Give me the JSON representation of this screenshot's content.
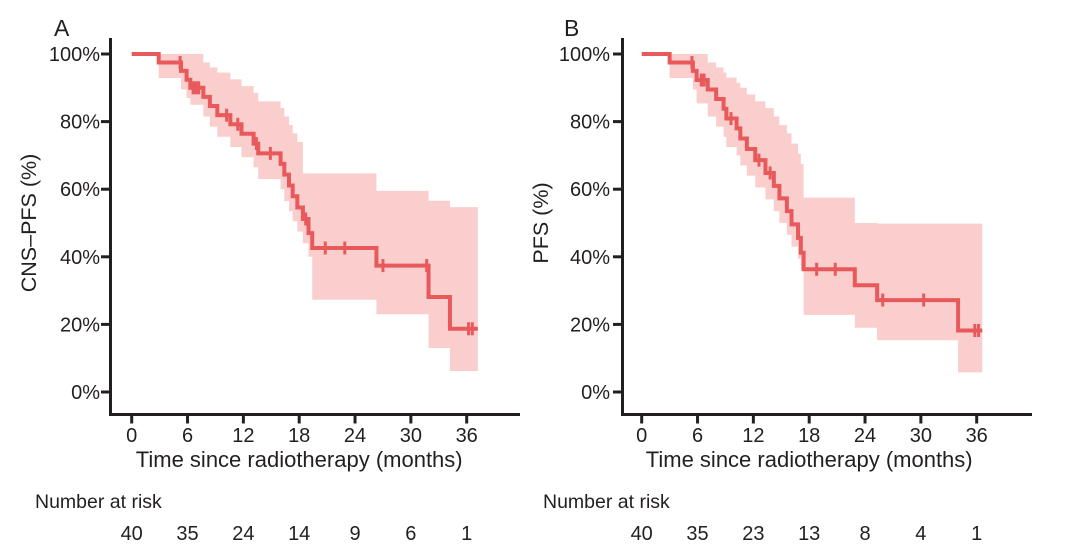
{
  "figure": {
    "background": "#ffffff",
    "text_color": "#231f20",
    "axis_color": "#231f20",
    "curve_color": "#e8595c",
    "ci_fill_color": "#f9cecd"
  },
  "chart_data": [
    {
      "panel_label": "A",
      "type": "line",
      "subtype": "kaplan_meier_step_with_ci",
      "title": "",
      "ylabel": "CNS–PFS (%)",
      "xlabel": "Time since radiotherapy (months)",
      "x_ticks": [
        0,
        6,
        12,
        18,
        24,
        30,
        36
      ],
      "y_ticks": [
        0,
        20,
        40,
        60,
        80,
        100
      ],
      "y_tick_labels": [
        "0%",
        "20%",
        "40%",
        "60%",
        "80%",
        "100%"
      ],
      "xlim": [
        0,
        40
      ],
      "ylim_percent": [
        0,
        100
      ],
      "grid": false,
      "legend": "none",
      "curve_color": "#e8595c",
      "ci_fill_color": "#f9cecd",
      "axis_color": "#231f20",
      "survival_steps": [
        {
          "t": 0,
          "s": 100
        },
        {
          "t": 2.9,
          "s": 97.5
        },
        {
          "t": 5.3,
          "s": 95.0
        },
        {
          "t": 5.9,
          "s": 92.4
        },
        {
          "t": 6.3,
          "s": 90.0
        },
        {
          "t": 7.7,
          "s": 87.3
        },
        {
          "t": 8.4,
          "s": 84.6
        },
        {
          "t": 9.2,
          "s": 81.9
        },
        {
          "t": 10.6,
          "s": 79.2
        },
        {
          "t": 11.8,
          "s": 76.4
        },
        {
          "t": 13.1,
          "s": 73.5
        },
        {
          "t": 13.6,
          "s": 70.6
        },
        {
          "t": 16.0,
          "s": 67.5
        },
        {
          "t": 16.4,
          "s": 64.3
        },
        {
          "t": 16.9,
          "s": 61.1
        },
        {
          "t": 17.3,
          "s": 57.9
        },
        {
          "t": 17.8,
          "s": 54.6
        },
        {
          "t": 18.4,
          "s": 51.2
        },
        {
          "t": 19.0,
          "s": 47.0
        },
        {
          "t": 19.4,
          "s": 42.6
        },
        {
          "t": 26.3,
          "s": 37.4
        },
        {
          "t": 31.9,
          "s": 28.1
        },
        {
          "t": 34.2,
          "s": 18.7
        }
      ],
      "curve_end_time": 37.2,
      "censor_marks": [
        {
          "t": 5.2,
          "s": 97.5
        },
        {
          "t": 6.6,
          "s": 90.0
        },
        {
          "t": 6.9,
          "s": 90.0
        },
        {
          "t": 7.2,
          "s": 90.0
        },
        {
          "t": 10.2,
          "s": 81.9
        },
        {
          "t": 11.4,
          "s": 79.2
        },
        {
          "t": 13.4,
          "s": 73.5
        },
        {
          "t": 14.9,
          "s": 70.6
        },
        {
          "t": 18.7,
          "s": 51.2
        },
        {
          "t": 20.8,
          "s": 42.6
        },
        {
          "t": 22.9,
          "s": 42.6
        },
        {
          "t": 27.0,
          "s": 37.4
        },
        {
          "t": 31.7,
          "s": 37.4
        },
        {
          "t": 36.2,
          "s": 18.7
        },
        {
          "t": 36.6,
          "s": 18.7
        }
      ],
      "ci_band": [
        {
          "t0": 2.9,
          "t1": 5.3,
          "hi": 100,
          "lo": 92.9
        },
        {
          "t0": 5.3,
          "t1": 5.9,
          "hi": 100,
          "lo": 89.5
        },
        {
          "t0": 5.9,
          "t1": 6.3,
          "hi": 100,
          "lo": 87.0
        },
        {
          "t0": 6.3,
          "t1": 7.7,
          "hi": 100,
          "lo": 85.0
        },
        {
          "t0": 7.7,
          "t1": 8.4,
          "hi": 97.5,
          "lo": 81.5
        },
        {
          "t0": 8.4,
          "t1": 9.2,
          "hi": 96.0,
          "lo": 78.5
        },
        {
          "t0": 9.2,
          "t1": 10.6,
          "hi": 94.5,
          "lo": 75.5
        },
        {
          "t0": 10.6,
          "t1": 11.8,
          "hi": 92.5,
          "lo": 72.5
        },
        {
          "t0": 11.8,
          "t1": 13.1,
          "hi": 90.5,
          "lo": 69.5
        },
        {
          "t0": 13.1,
          "t1": 13.6,
          "hi": 88.5,
          "lo": 66.5
        },
        {
          "t0": 13.6,
          "t1": 16.0,
          "hi": 86.0,
          "lo": 63.0
        },
        {
          "t0": 16.0,
          "t1": 16.4,
          "hi": 84.0,
          "lo": 60.0
        },
        {
          "t0": 16.4,
          "t1": 16.9,
          "hi": 81.5,
          "lo": 56.5
        },
        {
          "t0": 16.9,
          "t1": 17.3,
          "hi": 79.0,
          "lo": 53.5
        },
        {
          "t0": 17.3,
          "t1": 17.8,
          "hi": 76.5,
          "lo": 50.5
        },
        {
          "t0": 17.8,
          "t1": 18.4,
          "hi": 74.0,
          "lo": 47.5
        },
        {
          "t0": 18.4,
          "t1": 19.0,
          "hi": 64.7,
          "lo": 44.0
        },
        {
          "t0": 19.0,
          "t1": 19.4,
          "hi": 64.7,
          "lo": 40.0
        },
        {
          "t0": 19.4,
          "t1": 26.3,
          "hi": 64.7,
          "lo": 27.3
        },
        {
          "t0": 26.3,
          "t1": 31.9,
          "hi": 59.5,
          "lo": 23.0
        },
        {
          "t0": 31.9,
          "t1": 34.2,
          "hi": 56.6,
          "lo": 13.0
        },
        {
          "t0": 34.2,
          "t1": 37.2,
          "hi": 54.7,
          "lo": 6.2
        }
      ],
      "risk_table": {
        "label": "Number at risk",
        "times": [
          0,
          6,
          12,
          18,
          24,
          30,
          36
        ],
        "counts": [
          40,
          35,
          24,
          14,
          9,
          6,
          1
        ]
      }
    },
    {
      "panel_label": "B",
      "type": "line",
      "subtype": "kaplan_meier_step_with_ci",
      "title": "",
      "ylabel": "PFS (%)",
      "xlabel": "Time since radiotherapy (months)",
      "x_ticks": [
        0,
        6,
        12,
        18,
        24,
        30,
        36
      ],
      "y_ticks": [
        0,
        20,
        40,
        60,
        80,
        100
      ],
      "y_tick_labels": [
        "0%",
        "20%",
        "40%",
        "60%",
        "80%",
        "100%"
      ],
      "xlim": [
        0,
        40
      ],
      "ylim_percent": [
        0,
        100
      ],
      "grid": false,
      "legend": "none",
      "curve_color": "#e8595c",
      "ci_fill_color": "#f9cecd",
      "axis_color": "#231f20",
      "survival_steps": [
        {
          "t": 0,
          "s": 100
        },
        {
          "t": 3.0,
          "s": 97.5
        },
        {
          "t": 5.5,
          "s": 95.0
        },
        {
          "t": 5.9,
          "s": 92.3
        },
        {
          "t": 7.1,
          "s": 89.5
        },
        {
          "t": 8.0,
          "s": 86.7
        },
        {
          "t": 8.8,
          "s": 83.8
        },
        {
          "t": 9.1,
          "s": 80.9
        },
        {
          "t": 10.2,
          "s": 78.0
        },
        {
          "t": 10.6,
          "s": 75.0
        },
        {
          "t": 11.3,
          "s": 71.9
        },
        {
          "t": 12.2,
          "s": 68.6
        },
        {
          "t": 13.3,
          "s": 64.8
        },
        {
          "t": 14.2,
          "s": 61.0
        },
        {
          "t": 14.8,
          "s": 57.3
        },
        {
          "t": 15.6,
          "s": 53.5
        },
        {
          "t": 16.1,
          "s": 49.6
        },
        {
          "t": 16.8,
          "s": 45.6
        },
        {
          "t": 17.1,
          "s": 41.2
        },
        {
          "t": 17.4,
          "s": 36.3
        },
        {
          "t": 22.9,
          "s": 31.6
        },
        {
          "t": 25.3,
          "s": 27.2
        },
        {
          "t": 34.0,
          "s": 18.2
        }
      ],
      "curve_end_time": 36.6,
      "censor_marks": [
        {
          "t": 5.4,
          "s": 97.5
        },
        {
          "t": 6.4,
          "s": 92.3
        },
        {
          "t": 6.7,
          "s": 92.3
        },
        {
          "t": 9.6,
          "s": 80.9
        },
        {
          "t": 12.6,
          "s": 68.6
        },
        {
          "t": 13.8,
          "s": 64.8
        },
        {
          "t": 18.8,
          "s": 36.3
        },
        {
          "t": 20.8,
          "s": 36.3
        },
        {
          "t": 25.9,
          "s": 27.2
        },
        {
          "t": 30.3,
          "s": 27.2
        },
        {
          "t": 35.8,
          "s": 18.2
        },
        {
          "t": 36.2,
          "s": 18.2
        }
      ],
      "ci_band": [
        {
          "t0": 3.0,
          "t1": 5.5,
          "hi": 100,
          "lo": 92.9
        },
        {
          "t0": 5.5,
          "t1": 5.9,
          "hi": 100,
          "lo": 89.5
        },
        {
          "t0": 5.9,
          "t1": 7.1,
          "hi": 100,
          "lo": 85.4
        },
        {
          "t0": 7.1,
          "t1": 8.0,
          "hi": 97.5,
          "lo": 81.5
        },
        {
          "t0": 8.0,
          "t1": 8.8,
          "hi": 96.0,
          "lo": 78.5
        },
        {
          "t0": 8.8,
          "t1": 9.1,
          "hi": 94.5,
          "lo": 75.5
        },
        {
          "t0": 9.1,
          "t1": 10.2,
          "hi": 93.0,
          "lo": 72.5
        },
        {
          "t0": 10.2,
          "t1": 10.6,
          "hi": 91.5,
          "lo": 70.0
        },
        {
          "t0": 10.6,
          "t1": 11.3,
          "hi": 90.0,
          "lo": 67.0
        },
        {
          "t0": 11.3,
          "t1": 12.2,
          "hi": 88.0,
          "lo": 64.0
        },
        {
          "t0": 12.2,
          "t1": 13.3,
          "hi": 86.0,
          "lo": 60.5
        },
        {
          "t0": 13.3,
          "t1": 14.2,
          "hi": 84.0,
          "lo": 57.0
        },
        {
          "t0": 14.2,
          "t1": 14.8,
          "hi": 81.5,
          "lo": 53.5
        },
        {
          "t0": 14.8,
          "t1": 15.6,
          "hi": 79.0,
          "lo": 50.0
        },
        {
          "t0": 15.6,
          "t1": 16.1,
          "hi": 76.5,
          "lo": 46.5
        },
        {
          "t0": 16.1,
          "t1": 16.8,
          "hi": 73.5,
          "lo": 43.0
        },
        {
          "t0": 16.8,
          "t1": 17.1,
          "hi": 70.5,
          "lo": 39.5
        },
        {
          "t0": 17.1,
          "t1": 17.4,
          "hi": 67.5,
          "lo": 36.0
        },
        {
          "t0": 17.4,
          "t1": 22.9,
          "hi": 57.5,
          "lo": 22.8
        },
        {
          "t0": 22.9,
          "t1": 25.3,
          "hi": 50.0,
          "lo": 19.0
        },
        {
          "t0": 25.3,
          "t1": 34.0,
          "hi": 49.8,
          "lo": 15.3
        },
        {
          "t0": 34.0,
          "t1": 36.6,
          "hi": 49.8,
          "lo": 5.8
        }
      ],
      "risk_table": {
        "label": "Number at risk",
        "times": [
          0,
          6,
          12,
          18,
          24,
          30,
          36
        ],
        "counts": [
          40,
          35,
          23,
          13,
          8,
          4,
          1
        ]
      }
    }
  ]
}
